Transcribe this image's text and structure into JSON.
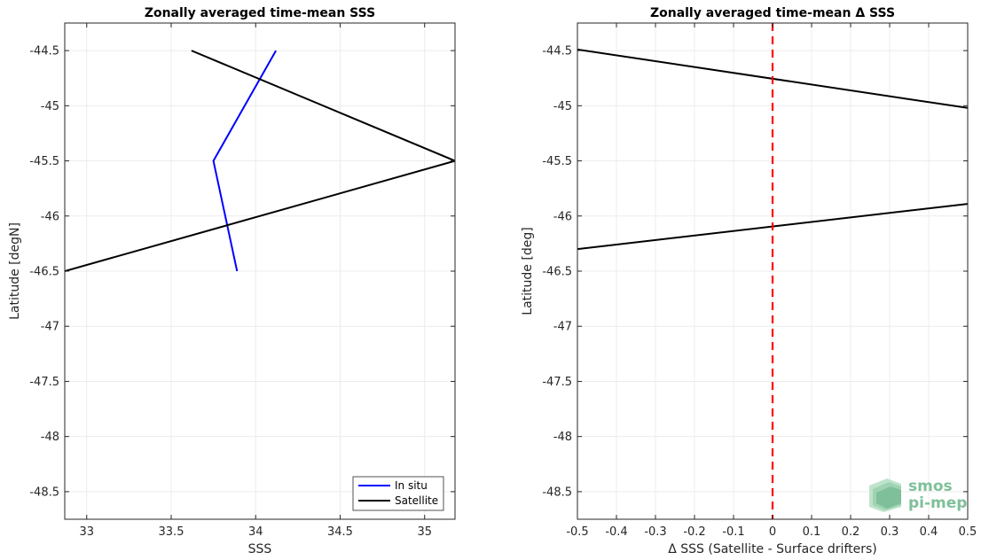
{
  "chart_data": [
    {
      "type": "line",
      "title": "Zonally averaged time-mean SSS",
      "xlabel": "SSS",
      "ylabel": "Latitude [degN]",
      "xlim": [
        32.87,
        35.18
      ],
      "ylim": [
        -48.75,
        -44.25
      ],
      "xticks": [
        33,
        33.5,
        34,
        34.5,
        35
      ],
      "xtick_labels": [
        "33",
        "33.5",
        "34",
        "34.5",
        "35"
      ],
      "yticks": [
        -44.5,
        -45,
        -45.5,
        -46,
        -46.5,
        -47,
        -47.5,
        -48,
        -48.5
      ],
      "ytick_labels": [
        "-44.5",
        "-45",
        "-45.5",
        "-46",
        "-46.5",
        "-47",
        "-47.5",
        "-48",
        "-48.5"
      ],
      "grid": true,
      "legend_position": "bottom-right",
      "series": [
        {
          "name": "In situ",
          "color": "#0000ff",
          "x": [
            34.12,
            33.75,
            33.89
          ],
          "y": [
            -44.5,
            -45.5,
            -46.5
          ]
        },
        {
          "name": "Satellite",
          "color": "#000000",
          "x": [
            33.62,
            35.18,
            32.87
          ],
          "y": [
            -44.5,
            -45.5,
            -46.5
          ]
        }
      ]
    },
    {
      "type": "line",
      "title": "Zonally averaged time-mean Δ SSS",
      "xlabel": "Δ SSS (Satellite - Surface drifters)",
      "ylabel": "Latitude [deg]",
      "xlim": [
        -0.5,
        0.5
      ],
      "ylim": [
        -48.75,
        -44.25
      ],
      "xticks": [
        -0.5,
        -0.4,
        -0.3,
        -0.2,
        -0.1,
        0,
        0.1,
        0.2,
        0.3,
        0.4,
        0.5
      ],
      "xtick_labels": [
        "-0.5",
        "-0.4",
        "-0.3",
        "-0.2",
        "-0.1",
        "0",
        "0.1",
        "0.2",
        "0.3",
        "0.4",
        "0.5"
      ],
      "yticks": [
        -44.5,
        -45,
        -45.5,
        -46,
        -46.5,
        -47,
        -47.5,
        -48,
        -48.5
      ],
      "ytick_labels": [
        "-44.5",
        "-45",
        "-45.5",
        "-46",
        "-46.5",
        "-47",
        "-47.5",
        "-48",
        "-48.5"
      ],
      "grid": true,
      "series": [
        {
          "color": "#000000",
          "x": [
            -0.5,
            0.5
          ],
          "y": [
            -44.49,
            -45.02
          ]
        },
        {
          "color": "#000000",
          "x": [
            -0.5,
            0.5
          ],
          "y": [
            -46.3,
            -45.89
          ]
        }
      ],
      "reference_line": {
        "x": 0,
        "color": "#ff0000",
        "style": "dashed"
      }
    }
  ],
  "logo": {
    "line1": "smos",
    "line2": "pi-mep",
    "color": "#7fbf9a"
  }
}
